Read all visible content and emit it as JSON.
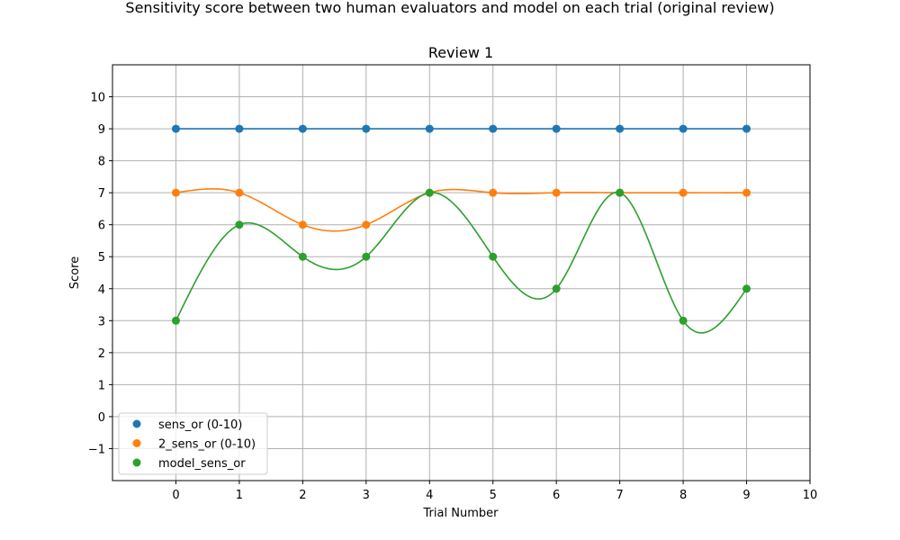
{
  "chart_data": {
    "type": "line",
    "suptitle": "Sensitivity score between two human evaluators and model on each trial (original review)",
    "title": "Review 1",
    "xlabel": "Trial Number",
    "ylabel": "Score",
    "xlim": [
      -1,
      10
    ],
    "ylim": [
      -2,
      11
    ],
    "xticks": [
      0,
      1,
      2,
      3,
      4,
      5,
      6,
      7,
      8,
      9,
      10
    ],
    "yticks": [
      -1,
      0,
      1,
      2,
      3,
      4,
      5,
      6,
      7,
      8,
      9,
      10
    ],
    "grid": true,
    "legend_position": "lower-left",
    "x": [
      0,
      1,
      2,
      3,
      4,
      5,
      6,
      7,
      8,
      9
    ],
    "series": [
      {
        "name": "sens_or (0-10)",
        "color": "#1f77b4",
        "values": [
          9,
          9,
          9,
          9,
          9,
          9,
          9,
          9,
          9,
          9
        ]
      },
      {
        "name": "2_sens_or (0-10)",
        "color": "#ff7f0e",
        "values": [
          7,
          7,
          6,
          6,
          7,
          7,
          7,
          7,
          7,
          7
        ]
      },
      {
        "name": "model_sens_or",
        "color": "#2ca02c",
        "values": [
          3,
          6,
          5,
          5,
          7,
          5,
          4,
          7,
          3,
          4
        ]
      }
    ]
  }
}
